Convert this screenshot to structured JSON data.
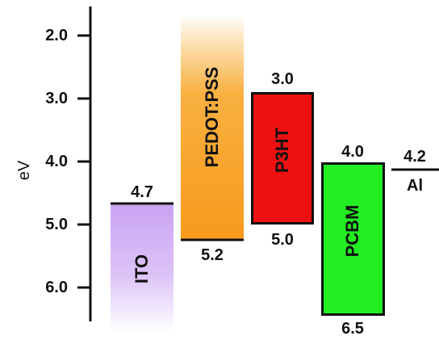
{
  "diagram": {
    "axis": {
      "ylabel": "eV",
      "ticks": [
        "2.0",
        "3.0",
        "4.0",
        "5.0",
        "6.0"
      ]
    },
    "materials": [
      {
        "label": "ITO",
        "top_value": "4.7",
        "color": "#c9a3f2"
      },
      {
        "label": "PEDOT:PSS",
        "bottom_value": "5.2",
        "color": "#f79a1c"
      },
      {
        "label": "P3HT",
        "top_value": "3.0",
        "bottom_value": "5.0",
        "color": "#ee1111"
      },
      {
        "label": "PCBM",
        "top_value": "4.0",
        "bottom_value": "6.5",
        "color": "#22ee22"
      },
      {
        "label": "Al",
        "top_value": "4.2"
      }
    ]
  }
}
